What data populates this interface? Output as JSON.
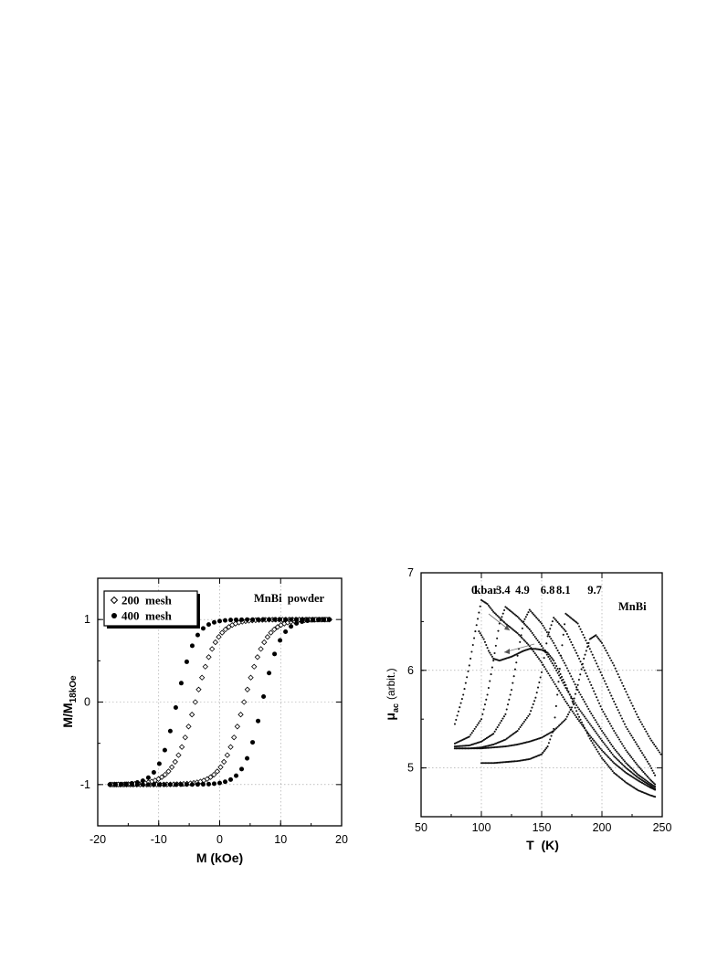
{
  "chart_data": [
    {
      "type": "scatter",
      "title": "",
      "annotation": "MnBi  powder",
      "xlabel": "M (kOe)",
      "ylabel": "M/M",
      "ylabel_sub": "18kOe",
      "xlim": [
        -20,
        20
      ],
      "ylim": [
        -1.5,
        1.5
      ],
      "xticks": [
        "-20",
        "-10",
        "0",
        "10",
        "20"
      ],
      "yticks": [
        "-1",
        "0",
        "1"
      ],
      "grid": true,
      "legend_position": "top-left",
      "series": [
        {
          "name": "200  mesh",
          "marker": "open-diamond",
          "color": "#000000",
          "loop": {
            "hc": 4.0,
            "w": 3.6,
            "hs": 18
          }
        },
        {
          "name": "400  mesh",
          "marker": "filled-circle",
          "color": "#000000",
          "loop": {
            "hc": 7.0,
            "w": 3.0,
            "hs": 18
          }
        }
      ]
    },
    {
      "type": "line",
      "title": "",
      "annotation": "MnBi",
      "xlabel": "T  (K)",
      "ylabel": "μ",
      "ylabel_sub": "ac",
      "ylabel_unit": "(arbit.)",
      "xlim": [
        50,
        250
      ],
      "ylim": [
        4.5,
        7
      ],
      "xticks": [
        "50",
        "100",
        "150",
        "200",
        "250"
      ],
      "yticks": [
        "5",
        "6",
        "7"
      ],
      "grid": true,
      "pressure_labels": [
        {
          "text": "0",
          "x": 94
        },
        {
          "text": "kbar",
          "x": 104
        },
        {
          "text": "3.4",
          "x": 118
        },
        {
          "text": "4.9",
          "x": 134
        },
        {
          "text": "6.8",
          "x": 155
        },
        {
          "text": "8.1",
          "x": 168
        },
        {
          "text": "9.7",
          "x": 194
        }
      ],
      "series": [
        {
          "name": "0 kbar",
          "x": [
            78,
            85,
            90,
            95,
            100,
            105,
            110,
            120,
            130,
            140,
            150,
            160,
            170,
            180,
            190,
            200,
            210,
            220,
            230,
            240,
            245
          ],
          "y": [
            5.45,
            5.75,
            6.05,
            6.4,
            6.72,
            6.68,
            6.6,
            6.48,
            6.38,
            6.25,
            6.08,
            5.88,
            5.68,
            5.5,
            5.33,
            5.18,
            5.05,
            4.95,
            4.87,
            4.8,
            4.77
          ]
        },
        {
          "name": "3.4 kbar",
          "x": [
            78,
            90,
            100,
            105,
            110,
            115,
            120,
            130,
            140,
            150,
            160,
            170,
            180,
            190,
            200,
            210,
            220,
            230,
            240,
            245
          ],
          "y": [
            5.25,
            5.32,
            5.5,
            5.75,
            6.1,
            6.48,
            6.65,
            6.55,
            6.42,
            6.25,
            6.05,
            5.82,
            5.62,
            5.45,
            5.28,
            5.12,
            5.0,
            4.9,
            4.82,
            4.78
          ]
        },
        {
          "name": "4.9 kbar",
          "x": [
            78,
            90,
            100,
            110,
            120,
            125,
            130,
            135,
            140,
            150,
            160,
            170,
            180,
            190,
            200,
            210,
            220,
            230,
            240,
            245
          ],
          "y": [
            5.22,
            5.23,
            5.27,
            5.35,
            5.55,
            5.8,
            6.15,
            6.5,
            6.62,
            6.48,
            6.28,
            6.05,
            5.8,
            5.58,
            5.38,
            5.2,
            5.05,
            4.93,
            4.84,
            4.8
          ]
        },
        {
          "name": "6.8 kbar",
          "x": [
            78,
            90,
            100,
            110,
            120,
            130,
            140,
            145,
            150,
            155,
            160,
            170,
            180,
            190,
            200,
            210,
            220,
            230,
            240,
            245
          ],
          "y": [
            5.2,
            5.2,
            5.21,
            5.24,
            5.29,
            5.38,
            5.55,
            5.72,
            5.98,
            6.35,
            6.54,
            6.4,
            6.15,
            5.88,
            5.6,
            5.38,
            5.18,
            5.02,
            4.88,
            4.82
          ]
        },
        {
          "name": "8.1 kbar",
          "x": [
            100,
            110,
            120,
            130,
            140,
            150,
            155,
            160,
            163,
            166,
            170,
            180,
            190,
            200,
            210,
            220,
            230,
            240,
            245
          ],
          "y": [
            5.05,
            5.05,
            5.06,
            5.07,
            5.09,
            5.14,
            5.22,
            5.4,
            5.75,
            6.15,
            6.58,
            6.48,
            6.22,
            5.95,
            5.68,
            5.42,
            5.22,
            5.02,
            4.9
          ]
        },
        {
          "name": "9.7 kbar",
          "x": [
            78,
            90,
            100,
            110,
            120,
            130,
            140,
            150,
            160,
            170,
            175,
            180,
            185,
            190,
            195,
            200,
            210,
            220,
            230,
            240,
            250
          ],
          "y": [
            5.2,
            5.2,
            5.2,
            5.21,
            5.22,
            5.24,
            5.27,
            5.31,
            5.38,
            5.5,
            5.62,
            5.85,
            6.12,
            6.32,
            6.36,
            6.28,
            6.05,
            5.78,
            5.52,
            5.3,
            5.12
          ]
        },
        {
          "name": "0 kbar dip",
          "x": [
            98,
            102,
            106,
            110,
            115,
            120,
            125,
            130,
            135,
            140,
            145,
            150,
            155,
            160,
            170,
            180,
            190,
            200,
            210,
            220,
            230,
            240,
            245
          ],
          "y": [
            6.4,
            6.32,
            6.2,
            6.12,
            6.1,
            6.12,
            6.14,
            6.17,
            6.2,
            6.22,
            6.22,
            6.21,
            6.18,
            6.1,
            5.85,
            5.55,
            5.3,
            5.1,
            4.95,
            4.85,
            4.77,
            4.72,
            4.7
          ]
        }
      ]
    }
  ]
}
